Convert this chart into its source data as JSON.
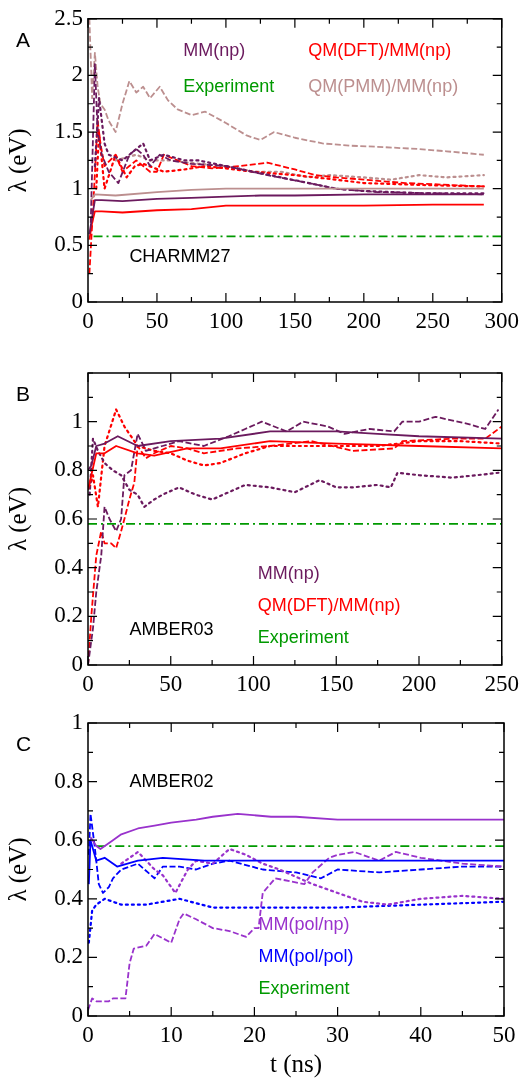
{
  "chart_data": [
    {
      "type": "line",
      "ylabel": "λ (eV)",
      "annotations": [
        "A",
        "CHARMM27"
      ],
      "legend": "top",
      "marker": "none",
      "xlim": [
        0,
        300
      ],
      "xticks": [
        0,
        {
          "value": 25,
          "label": null
        },
        50,
        {
          "value": 75,
          "label": null
        },
        100,
        {
          "value": 125,
          "label": null
        },
        150,
        {
          "value": 175,
          "label": null
        },
        200,
        {
          "value": 225,
          "label": null
        },
        250,
        {
          "value": 275,
          "label": null
        },
        300
      ],
      "ylim": [
        0,
        2.5
      ],
      "yticks": [
        0,
        {
          "value": 0.25,
          "label": null
        },
        0.5,
        {
          "value": 0.75,
          "label": null
        },
        1,
        {
          "value": 1.25,
          "label": null
        },
        1.5,
        {
          "value": 1.75,
          "label": null
        },
        2,
        {
          "value": 2.25,
          "label": null
        },
        2.5
      ],
      "series": [
        {
          "name": "MM(np)",
          "color": "#6b1a5e",
          "line_style": "solid",
          "x": [
            1,
            3,
            5,
            10,
            25,
            50,
            75,
            100,
            125,
            150,
            200,
            250,
            287
          ],
          "values": [
            0.6,
            0.75,
            0.9,
            0.9,
            0.89,
            0.91,
            0.92,
            0.93,
            0.94,
            0.94,
            0.95,
            0.95,
            0.95
          ]
        },
        {
          "name": "QM(DFT)/MM(np)",
          "color": "#ff0000",
          "line_style": "solid",
          "x": [
            1,
            3,
            5,
            10,
            25,
            50,
            75,
            100,
            125,
            150,
            200,
            250,
            287
          ],
          "values": [
            0.55,
            0.7,
            0.8,
            0.8,
            0.79,
            0.81,
            0.82,
            0.85,
            0.85,
            0.85,
            0.85,
            0.86,
            0.86
          ]
        },
        {
          "name": "Experiment",
          "color": "#009900",
          "line_style": "dashdot",
          "x": [
            4,
            300
          ],
          "values": [
            0.58,
            0.58
          ]
        },
        {
          "name": "QM(PMM)/MM(np)",
          "color": "#bc8f8f",
          "line_style": "solid",
          "x": [
            2,
            5,
            20,
            50,
            75,
            100,
            150,
            200,
            250,
            287
          ],
          "values": [
            0.9,
            0.95,
            0.94,
            0.97,
            0.99,
            1.0,
            1.0,
            1.0,
            1.0,
            1.0
          ]
        },
        {
          "color": "#6b1a5e",
          "line_style": "dashed",
          "x": [
            2,
            5,
            7,
            10,
            15,
            22,
            30,
            35,
            40,
            45,
            52,
            60,
            75,
            100,
            130,
            160,
            180,
            210,
            250,
            287
          ],
          "values": [
            0.7,
            2.1,
            1.5,
            1.3,
            1.15,
            1.05,
            1.3,
            1.35,
            1.3,
            1.2,
            1.3,
            1.25,
            1.22,
            1.2,
            1.12,
            1.05,
            1.0,
            0.97,
            0.96,
            0.95
          ]
        },
        {
          "color": "#6b1a5e",
          "line_style": "dotted",
          "x": [
            5,
            8,
            12,
            15,
            25,
            35,
            40,
            45,
            55,
            70,
            80,
            100,
            120,
            140,
            160,
            180,
            200,
            240,
            287
          ],
          "values": [
            1.2,
            1.8,
            1.4,
            1.3,
            1.25,
            1.35,
            1.4,
            1.25,
            1.3,
            1.25,
            1.25,
            1.2,
            1.15,
            1.1,
            1.05,
            1.0,
            0.98,
            0.96,
            0.96
          ]
        },
        {
          "color": "#ff0000",
          "line_style": "dashed",
          "x": [
            1,
            4,
            7,
            9,
            12,
            16,
            20,
            25,
            30,
            35,
            40,
            45,
            50,
            55,
            65,
            75,
            90,
            110,
            130,
            150,
            165,
            180,
            200,
            210,
            230,
            250,
            287
          ],
          "values": [
            0.25,
            0.9,
            1.6,
            1.4,
            1.2,
            1.25,
            1.3,
            1.15,
            1.2,
            1.25,
            1.2,
            1.15,
            1.15,
            1.3,
            1.25,
            1.2,
            1.18,
            1.2,
            1.23,
            1.17,
            1.12,
            1.1,
            1.08,
            1.07,
            1.05,
            1.04,
            1.02
          ]
        },
        {
          "color": "#ff0000",
          "line_style": "dotted",
          "x": [
            6,
            8,
            12,
            16,
            20,
            28,
            34,
            40,
            55,
            70,
            85,
            100,
            120,
            150,
            180,
            200,
            250,
            287
          ],
          "values": [
            1.0,
            1.5,
            1.0,
            1.15,
            1.3,
            1.1,
            1.2,
            1.22,
            1.15,
            1.17,
            1.2,
            1.18,
            1.15,
            1.12,
            1.08,
            1.05,
            1.03,
            1.02
          ]
        },
        {
          "color": "#bc8f8f",
          "line_style": "dashed",
          "x": [
            1,
            3,
            5,
            7,
            9,
            12,
            15,
            20,
            25,
            30,
            35,
            40,
            45,
            52,
            58,
            65,
            75,
            85,
            100,
            115,
            125,
            135,
            150,
            170,
            190,
            210,
            240,
            260,
            287
          ],
          "values": [
            2.5,
            1.8,
            2.2,
            1.9,
            1.75,
            1.7,
            1.6,
            1.5,
            1.75,
            1.95,
            1.85,
            1.9,
            1.8,
            1.9,
            1.78,
            1.7,
            1.65,
            1.68,
            1.58,
            1.47,
            1.43,
            1.5,
            1.45,
            1.4,
            1.38,
            1.37,
            1.35,
            1.33,
            1.3
          ]
        },
        {
          "color": "#bc8f8f",
          "line_style": "dotted",
          "x": [
            20,
            35,
            45,
            60,
            80,
            100,
            120,
            140,
            160,
            175,
            200,
            220,
            240,
            260,
            287
          ],
          "values": [
            1.25,
            1.3,
            1.25,
            1.25,
            1.22,
            1.2,
            1.15,
            1.15,
            1.1,
            1.12,
            1.1,
            1.08,
            1.12,
            1.1,
            1.12
          ]
        }
      ]
    },
    {
      "type": "line",
      "ylabel": "λ (eV)",
      "annotations": [
        "B",
        "AMBER03"
      ],
      "legend": "bottom",
      "marker": "none",
      "xlim": [
        0,
        250
      ],
      "xticks": [
        0,
        {
          "value": 25,
          "label": null
        },
        50,
        {
          "value": 75,
          "label": null
        },
        100,
        {
          "value": 125,
          "label": null
        },
        150,
        {
          "value": 175,
          "label": null
        },
        200,
        {
          "value": 225,
          "label": null
        },
        250
      ],
      "ylim": [
        0,
        1.2
      ],
      "yticks": [
        0,
        {
          "value": 0.1,
          "label": null
        },
        0.2,
        {
          "value": 0.3,
          "label": null
        },
        0.4,
        {
          "value": 0.5,
          "label": null
        },
        0.6,
        {
          "value": 0.7,
          "label": null
        },
        0.8,
        {
          "value": 0.9,
          "label": null
        },
        1,
        {
          "value": 1.1,
          "label": null
        },
        {
          "value": 1.2,
          "label": null
        }
      ],
      "series": [
        {
          "name": "MM(np)",
          "color": "#6b1a5e",
          "line_style": "solid",
          "x": [
            0,
            2,
            5,
            10,
            18,
            30,
            50,
            80,
            110,
            150,
            175,
            200,
            250
          ],
          "values": [
            0.8,
            0.82,
            0.9,
            0.91,
            0.94,
            0.9,
            0.92,
            0.93,
            0.96,
            0.96,
            0.95,
            0.94,
            0.93
          ]
        },
        {
          "name": "QM(DFT)/MM(np)",
          "color": "#ff0000",
          "line_style": "solid",
          "x": [
            0,
            2,
            5,
            10,
            17,
            30,
            40,
            60,
            80,
            110,
            150,
            200,
            250
          ],
          "values": [
            0.72,
            0.78,
            0.87,
            0.87,
            0.9,
            0.87,
            0.86,
            0.89,
            0.89,
            0.92,
            0.91,
            0.9,
            0.89
          ]
        },
        {
          "name": "Experiment",
          "color": "#009900",
          "line_style": "dashdot",
          "x": [
            0,
            250
          ],
          "values": [
            0.58,
            0.58
          ]
        },
        {
          "color": "#6b1a5e",
          "line_style": "dashed",
          "x": [
            0,
            3,
            5,
            8,
            10,
            13,
            17,
            20,
            22,
            26,
            30,
            35,
            45,
            55,
            70,
            85,
            95,
            105,
            120,
            130,
            145,
            155,
            170,
            185,
            190,
            200,
            210,
            230,
            240,
            248
          ],
          "values": [
            0,
            0.15,
            0.3,
            0.45,
            0.65,
            0.6,
            0.55,
            0.6,
            0.78,
            0.8,
            0.95,
            0.88,
            0.9,
            0.92,
            0.9,
            0.94,
            0.97,
            1.0,
            0.96,
            1.0,
            0.98,
            0.95,
            0.97,
            0.96,
            1.0,
            1.0,
            1.02,
            0.99,
            0.97,
            1.05
          ]
        },
        {
          "color": "#6b1a5e",
          "line_style": "dotted",
          "x": [
            1,
            3,
            6,
            10,
            15,
            20,
            25,
            30,
            34,
            40,
            45,
            55,
            65,
            75,
            95,
            110,
            125,
            140,
            150,
            160,
            175,
            183,
            187,
            200,
            220,
            235,
            248
          ],
          "values": [
            0.7,
            0.93,
            0.88,
            0.83,
            0.8,
            0.78,
            0.72,
            0.7,
            0.65,
            0.68,
            0.7,
            0.73,
            0.7,
            0.68,
            0.74,
            0.73,
            0.71,
            0.76,
            0.73,
            0.73,
            0.74,
            0.73,
            0.79,
            0.78,
            0.77,
            0.78,
            0.79
          ]
        },
        {
          "color": "#ff0000",
          "line_style": "dashed",
          "x": [
            0,
            2,
            5,
            8,
            10,
            14,
            17,
            20,
            22,
            25,
            28,
            30,
            35,
            40,
            50,
            60,
            70,
            90,
            110,
            135,
            160,
            185,
            190,
            220,
            240,
            250
          ],
          "values": [
            0,
            0.2,
            0.45,
            0.55,
            0.5,
            0.5,
            0.48,
            0.55,
            0.6,
            0.68,
            0.75,
            0.9,
            0.85,
            0.87,
            0.9,
            0.89,
            0.87,
            0.89,
            0.9,
            0.92,
            0.88,
            0.89,
            0.92,
            0.93,
            0.93,
            0.98
          ]
        },
        {
          "color": "#ff0000",
          "line_style": "dotted",
          "x": [
            1,
            3,
            6,
            10,
            17,
            22,
            30,
            40,
            50,
            60,
            70,
            80,
            95,
            110,
            130,
            150,
            175,
            200,
            225,
            250
          ],
          "values": [
            0.73,
            0.78,
            0.65,
            0.9,
            1.05,
            0.98,
            0.9,
            0.88,
            0.87,
            0.84,
            0.82,
            0.83,
            0.87,
            0.9,
            0.9,
            0.9,
            0.9,
            0.92,
            0.92,
            0.91
          ]
        }
      ]
    },
    {
      "type": "line",
      "ylabel": "λ (eV)",
      "xlabel": "t (ns)",
      "annotations": [
        "C",
        "AMBER02"
      ],
      "legend": "bottom",
      "marker": "none",
      "xlim": [
        0,
        50
      ],
      "xticks": [
        0,
        {
          "value": 5,
          "label": null
        },
        10,
        {
          "value": 15,
          "label": null
        },
        20,
        {
          "value": 25,
          "label": null
        },
        30,
        {
          "value": 35,
          "label": null
        },
        40,
        {
          "value": 45,
          "label": null
        },
        50
      ],
      "ylim": [
        0,
        1
      ],
      "yticks": [
        0,
        {
          "value": 0.1,
          "label": null
        },
        0.2,
        {
          "value": 0.3,
          "label": null
        },
        0.4,
        {
          "value": 0.5,
          "label": null
        },
        0.6,
        {
          "value": 0.7,
          "label": null
        },
        0.8,
        {
          "value": 0.9,
          "label": null
        },
        1
      ],
      "series": [
        {
          "name": "MM(pol/np)",
          "color": "#9932cc",
          "line_style": "solid",
          "x": [
            0.3,
            1,
            1.5,
            3,
            4,
            6,
            8,
            10,
            13,
            15,
            18,
            22,
            25,
            30,
            35,
            40,
            45,
            50
          ],
          "values": [
            0.61,
            0.58,
            0.57,
            0.6,
            0.62,
            0.64,
            0.65,
            0.66,
            0.67,
            0.68,
            0.69,
            0.68,
            0.68,
            0.67,
            0.67,
            0.67,
            0.67,
            0.67
          ]
        },
        {
          "name": "MM(pol/pol)",
          "color": "#0000ff",
          "line_style": "solid",
          "x": [
            0.1,
            0.3,
            1,
            2,
            3.5,
            6,
            9,
            14,
            20,
            30,
            40,
            50
          ],
          "values": [
            0.45,
            0.6,
            0.53,
            0.54,
            0.51,
            0.53,
            0.54,
            0.53,
            0.53,
            0.53,
            0.53,
            0.53
          ]
        },
        {
          "name": "Experiment",
          "color": "#009900",
          "line_style": "dashdot",
          "x": [
            1,
            50
          ],
          "values": [
            0.58,
            0.58
          ]
        },
        {
          "color": "#9932cc",
          "line_style": "dashed",
          "x": [
            0,
            0.5,
            1,
            2.5,
            3,
            4.5,
            5,
            5.5,
            7,
            8,
            10,
            11,
            11.5,
            13,
            15,
            17,
            19,
            20,
            20.5,
            21,
            22.5,
            26,
            27,
            29,
            30,
            32,
            35,
            37,
            40,
            45,
            50
          ],
          "values": [
            0.02,
            0.06,
            0.05,
            0.05,
            0.06,
            0.06,
            0.18,
            0.23,
            0.24,
            0.28,
            0.25,
            0.33,
            0.35,
            0.33,
            0.3,
            0.29,
            0.27,
            0.3,
            0.3,
            0.42,
            0.47,
            0.45,
            0.49,
            0.54,
            0.55,
            0.56,
            0.53,
            0.56,
            0.54,
            0.52,
            0.51
          ]
        },
        {
          "color": "#9932cc",
          "line_style": "dotted",
          "x": [
            4,
            6,
            8,
            9,
            10.5,
            12,
            13,
            15,
            17,
            19,
            21,
            23,
            27,
            30,
            33,
            36,
            40,
            45,
            50
          ],
          "values": [
            0.52,
            0.56,
            0.5,
            0.48,
            0.42,
            0.5,
            0.53,
            0.52,
            0.57,
            0.55,
            0.52,
            0.5,
            0.45,
            0.42,
            0.39,
            0.38,
            0.4,
            0.41,
            0.4
          ]
        },
        {
          "color": "#0000ff",
          "line_style": "dashed",
          "x": [
            0.1,
            0.3,
            0.8,
            1.3,
            1.8,
            2.5,
            3,
            4,
            6,
            8,
            9,
            11,
            13,
            15,
            17,
            21,
            25,
            28,
            30,
            35,
            40,
            45,
            50
          ],
          "values": [
            0.55,
            0.69,
            0.58,
            0.45,
            0.42,
            0.44,
            0.47,
            0.5,
            0.52,
            0.47,
            0.51,
            0.51,
            0.5,
            0.52,
            0.53,
            0.5,
            0.49,
            0.47,
            0.5,
            0.49,
            0.5,
            0.51,
            0.51
          ]
        },
        {
          "color": "#0000ff",
          "line_style": "dotted",
          "x": [
            0.1,
            0.5,
            1,
            2,
            4,
            7,
            11,
            15,
            20,
            25,
            30,
            40,
            50
          ],
          "values": [
            0.25,
            0.36,
            0.38,
            0.4,
            0.38,
            0.38,
            0.4,
            0.37,
            0.37,
            0.37,
            0.37,
            0.38,
            0.39
          ]
        }
      ]
    }
  ]
}
